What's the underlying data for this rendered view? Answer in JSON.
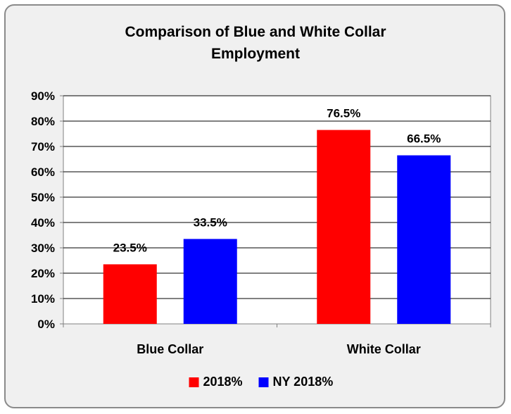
{
  "chart_data": {
    "type": "bar",
    "title_lines": [
      "Comparison of Blue and White Collar",
      "Employment"
    ],
    "categories": [
      "Blue Collar",
      "White Collar"
    ],
    "series": [
      {
        "name": "2018%",
        "color": "#ff0000",
        "values": [
          23.5,
          76.5
        ],
        "labels": [
          "23.5%",
          "76.5%"
        ]
      },
      {
        "name": "NY 2018%",
        "color": "#0000ff",
        "values": [
          33.5,
          66.5
        ],
        "labels": [
          "33.5%",
          "66.5%"
        ]
      }
    ],
    "ylim": [
      0,
      90
    ],
    "yticks": [
      0,
      10,
      20,
      30,
      40,
      50,
      60,
      70,
      80,
      90
    ],
    "ytick_labels": [
      "0%",
      "10%",
      "20%",
      "30%",
      "40%",
      "50%",
      "60%",
      "70%",
      "80%",
      "90%"
    ],
    "grid": true,
    "legend_position": "bottom",
    "xlabel": "",
    "ylabel": ""
  }
}
